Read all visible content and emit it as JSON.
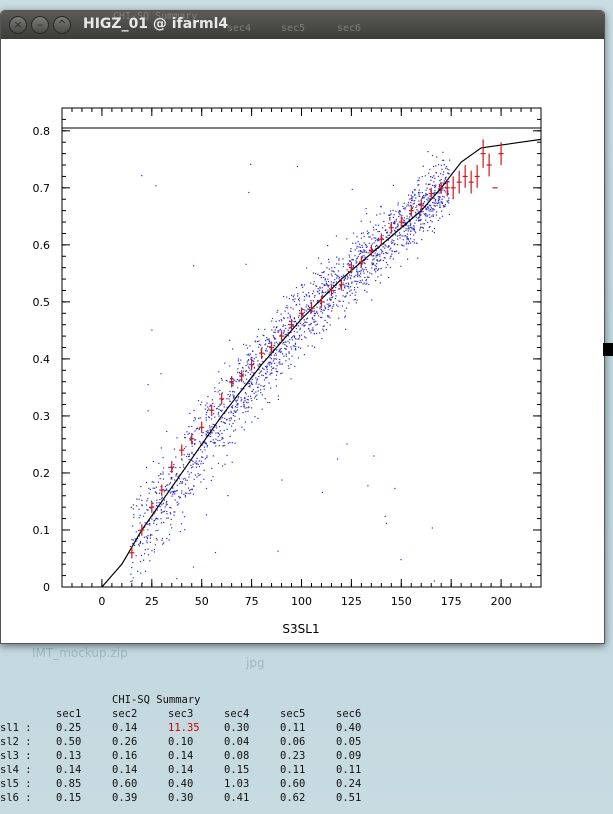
{
  "window": {
    "title": "HIGZ_01 @ ifarml4",
    "ghost_labels": [
      "CHI-SQ Summary",
      "sec4",
      "sec5",
      "sec6"
    ]
  },
  "desktop": {
    "file_labels": [
      "IMT_mockup.zip",
      "jpg"
    ]
  },
  "chart_data": {
    "type": "scatter",
    "title": "",
    "xlabel": "S3SL1",
    "ylabel": "",
    "xlim": [
      -20,
      220
    ],
    "ylim": [
      0,
      0.84
    ],
    "xticks": [
      "0",
      "25",
      "50",
      "75",
      "100",
      "125",
      "150",
      "175",
      "200"
    ],
    "yticks": [
      "0",
      "0.1",
      "0.2",
      "0.3",
      "0.4",
      "0.5",
      "0.6",
      "0.7",
      "0.8"
    ],
    "grid": false,
    "horizontal_line_y": 0.805,
    "scatter_color": "#2a2ad0",
    "profile_color": "#d01818",
    "curve_color": "#000000",
    "curve": {
      "x": [
        0,
        10,
        20,
        30,
        40,
        50,
        60,
        70,
        80,
        90,
        100,
        110,
        120,
        130,
        140,
        150,
        160,
        170,
        180,
        190,
        200,
        210,
        220
      ],
      "y": [
        0,
        0.04,
        0.1,
        0.15,
        0.2,
        0.25,
        0.3,
        0.345,
        0.39,
        0.43,
        0.47,
        0.505,
        0.54,
        0.57,
        0.6,
        0.63,
        0.66,
        0.7,
        0.745,
        0.77,
        0.775,
        0.78,
        0.785
      ]
    },
    "profile": {
      "x": [
        15,
        20,
        25,
        30,
        35,
        40,
        45,
        50,
        55,
        60,
        65,
        70,
        75,
        80,
        85,
        90,
        95,
        100,
        105,
        110,
        115,
        120,
        125,
        130,
        135,
        140,
        145,
        150,
        155,
        160,
        165,
        170,
        173,
        176,
        179,
        182,
        185,
        188,
        191,
        194,
        197,
        200
      ],
      "y": [
        0.06,
        0.1,
        0.14,
        0.17,
        0.21,
        0.24,
        0.26,
        0.28,
        0.31,
        0.33,
        0.36,
        0.37,
        0.39,
        0.41,
        0.42,
        0.44,
        0.46,
        0.48,
        0.49,
        0.5,
        0.52,
        0.53,
        0.56,
        0.57,
        0.59,
        0.61,
        0.63,
        0.64,
        0.66,
        0.67,
        0.69,
        0.7,
        0.7,
        0.7,
        0.71,
        0.72,
        0.71,
        0.72,
        0.76,
        0.74,
        0.7,
        0.76
      ],
      "err": [
        0.01,
        0.01,
        0.01,
        0.01,
        0.01,
        0.01,
        0.01,
        0.01,
        0.01,
        0.01,
        0.01,
        0.01,
        0.01,
        0.01,
        0.01,
        0.01,
        0.01,
        0.01,
        0.01,
        0.01,
        0.01,
        0.01,
        0.01,
        0.01,
        0.01,
        0.01,
        0.01,
        0.01,
        0.01,
        0.01,
        0.01,
        0.01,
        0.015,
        0.02,
        0.02,
        0.02,
        0.02,
        0.02,
        0.025,
        0.02,
        0.0,
        0.02
      ]
    },
    "scatter_band_width": 0.04,
    "scatter_count": 2200
  },
  "summary": {
    "title": "CHI-SQ Summary",
    "columns": [
      "sec1",
      "sec2",
      "sec3",
      "sec4",
      "sec5",
      "sec6"
    ],
    "highlight_color": "#cc0000",
    "rows": [
      {
        "label": "sl1 :",
        "values": [
          "0.25",
          "0.14",
          "11.35",
          "0.30",
          "0.11",
          "0.40"
        ],
        "highlight": [
          2
        ]
      },
      {
        "label": "sl2 :",
        "values": [
          "0.50",
          "0.26",
          "0.10",
          "0.04",
          "0.06",
          "0.05"
        ],
        "highlight": []
      },
      {
        "label": "sl3 :",
        "values": [
          "0.13",
          "0.16",
          "0.14",
          "0.08",
          "0.23",
          "0.09"
        ],
        "highlight": []
      },
      {
        "label": "sl4 :",
        "values": [
          "0.14",
          "0.14",
          "0.14",
          "0.15",
          "0.11",
          "0.11"
        ],
        "highlight": []
      },
      {
        "label": "sl5 :",
        "values": [
          "0.85",
          "0.60",
          "0.40",
          "1.03",
          "0.60",
          "0.24"
        ],
        "highlight": []
      },
      {
        "label": "sl6 :",
        "values": [
          "0.15",
          "0.39",
          "0.30",
          "0.41",
          "0.62",
          "0.51"
        ],
        "highlight": []
      }
    ]
  }
}
